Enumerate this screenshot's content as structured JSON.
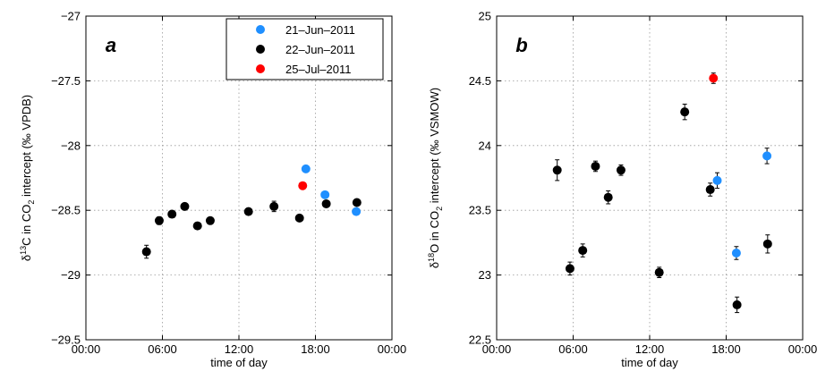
{
  "colors": {
    "s21jun": "#1f8fff",
    "s22jun": "#000000",
    "s25jul": "#ff0000"
  },
  "chart_data": [
    {
      "type": "scatter",
      "panel": "a",
      "xlabel": "time of day",
      "ylabel": "δ¹³C in CO₂ intercept (‰ VPDB)",
      "ylabel_parts": {
        "pre": "δ",
        "sup": "13",
        "mid": "C in CO",
        "sub": "2",
        "post": " intercept (‰ VPDB)"
      },
      "xlim": [
        0,
        24
      ],
      "ylim": [
        -29.5,
        -27
      ],
      "xticks": [
        0,
        6,
        12,
        18,
        24
      ],
      "xtick_labels": [
        "00:00",
        "06:00",
        "12:00",
        "18:00",
        "00:00"
      ],
      "yticks": [
        -29.5,
        -29,
        -28.5,
        -28,
        -27.5,
        -27
      ],
      "ytick_labels": [
        "−29.5",
        "−29",
        "−28.5",
        "−28",
        "−27.5",
        "−27"
      ],
      "grid": true,
      "legend": {
        "placement": "top-right",
        "entries": [
          "21–Jun–2011",
          "22–Jun–2011",
          "25–Jul–2011"
        ]
      },
      "series": [
        {
          "name": "21–Jun–2011",
          "color": "#1f8fff",
          "points": [
            {
              "x": 17.25,
              "y": -28.18,
              "err": 0.02
            },
            {
              "x": 18.75,
              "y": -28.38,
              "err": 0.02
            },
            {
              "x": 21.2,
              "y": -28.51,
              "err": 0.02
            }
          ]
        },
        {
          "name": "22–Jun–2011",
          "color": "#000000",
          "points": [
            {
              "x": 4.75,
              "y": -28.82,
              "err": 0.05
            },
            {
              "x": 5.75,
              "y": -28.58,
              "err": 0.03
            },
            {
              "x": 6.75,
              "y": -28.53,
              "err": 0.02
            },
            {
              "x": 7.75,
              "y": -28.47,
              "err": 0.02
            },
            {
              "x": 8.75,
              "y": -28.62,
              "err": 0.02
            },
            {
              "x": 9.75,
              "y": -28.58,
              "err": 0.02
            },
            {
              "x": 12.75,
              "y": -28.51,
              "err": 0.02
            },
            {
              "x": 14.75,
              "y": -28.47,
              "err": 0.04
            },
            {
              "x": 16.75,
              "y": -28.56,
              "err": 0.02
            },
            {
              "x": 18.85,
              "y": -28.45,
              "err": 0.02
            },
            {
              "x": 21.25,
              "y": -28.44,
              "err": 0.02
            }
          ]
        },
        {
          "name": "25–Jul–2011",
          "color": "#ff0000",
          "points": [
            {
              "x": 17.0,
              "y": -28.31,
              "err": 0.02
            }
          ]
        }
      ]
    },
    {
      "type": "scatter",
      "panel": "b",
      "xlabel": "time of day",
      "ylabel": "δ¹⁸O in CO₂ intercept (‰ VSMOW)",
      "ylabel_parts": {
        "pre": "δ",
        "sup": "18",
        "mid": "O in CO",
        "sub": "2",
        "post": " intercept (‰ VSMOW)"
      },
      "xlim": [
        0,
        24
      ],
      "ylim": [
        22.5,
        25
      ],
      "xticks": [
        0,
        6,
        12,
        18,
        24
      ],
      "xtick_labels": [
        "00:00",
        "06:00",
        "12:00",
        "18:00",
        "00:00"
      ],
      "yticks": [
        22.5,
        23,
        23.5,
        24,
        24.5,
        25
      ],
      "ytick_labels": [
        "22.5",
        "23",
        "23.5",
        "24",
        "24.5",
        "25"
      ],
      "grid": true,
      "series": [
        {
          "name": "21–Jun–2011",
          "color": "#1f8fff",
          "points": [
            {
              "x": 17.3,
              "y": 23.73,
              "err": 0.06
            },
            {
              "x": 18.8,
              "y": 23.17,
              "err": 0.05
            },
            {
              "x": 21.2,
              "y": 23.92,
              "err": 0.06
            }
          ]
        },
        {
          "name": "22–Jun–2011",
          "color": "#000000",
          "points": [
            {
              "x": 4.75,
              "y": 23.81,
              "err": 0.08
            },
            {
              "x": 5.75,
              "y": 23.05,
              "err": 0.05
            },
            {
              "x": 6.75,
              "y": 23.19,
              "err": 0.05
            },
            {
              "x": 7.75,
              "y": 23.84,
              "err": 0.04
            },
            {
              "x": 8.75,
              "y": 23.6,
              "err": 0.05
            },
            {
              "x": 9.75,
              "y": 23.81,
              "err": 0.04
            },
            {
              "x": 12.75,
              "y": 23.02,
              "err": 0.04
            },
            {
              "x": 14.75,
              "y": 24.26,
              "err": 0.06
            },
            {
              "x": 16.75,
              "y": 23.66,
              "err": 0.05
            },
            {
              "x": 18.85,
              "y": 22.77,
              "err": 0.06
            },
            {
              "x": 21.25,
              "y": 23.24,
              "err": 0.07
            }
          ]
        },
        {
          "name": "25–Jul–2011",
          "color": "#ff0000",
          "points": [
            {
              "x": 17.0,
              "y": 24.52,
              "err": 0.04
            }
          ]
        }
      ]
    }
  ]
}
